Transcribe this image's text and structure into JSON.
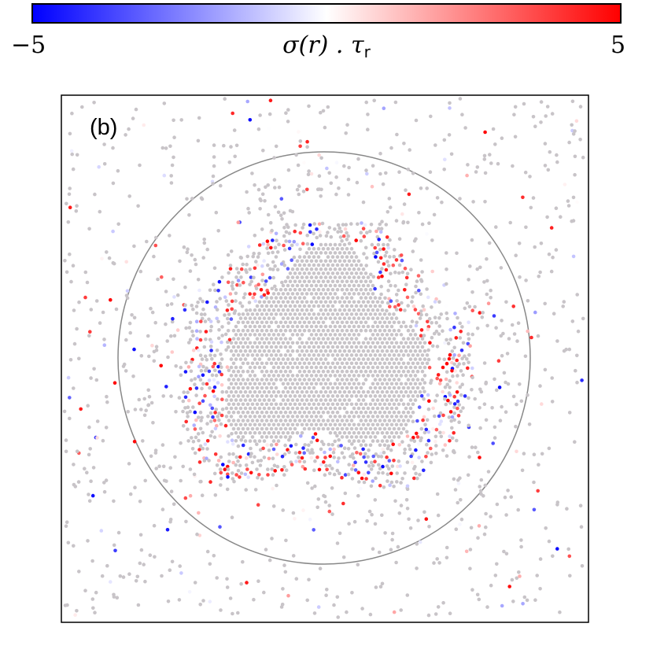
{
  "colorbar": {
    "min_label": "−5",
    "max_label": "5",
    "label_main": "σ(r) . τ",
    "label_sub": "r",
    "min": -5,
    "max": 5,
    "colors": {
      "low": "#0000ff",
      "mid": "#ffffff",
      "high": "#ff0000"
    }
  },
  "panel_label": "(b)",
  "chart_data": {
    "type": "scatter",
    "title": "",
    "xlabel": "",
    "ylabel": "",
    "color_variable": "σ(r) . τr",
    "color_range": [
      -5,
      5
    ],
    "neutral_color": "#c8c4c8",
    "circle_outline": true,
    "grid": false,
    "axis_ticks": false,
    "notes_visible": "Dense particle cluster in center, sparse particles outside; strongly colored red/blue particles concentrated at the cluster boundary.",
    "regions": [
      {
        "name": "dense-core",
        "density": "high",
        "typical_value": 0
      },
      {
        "name": "cluster-boundary",
        "density": "medium",
        "typical_value_range": [
          -5,
          5
        ]
      },
      {
        "name": "dilute-outside",
        "density": "low",
        "typical_value": 0
      }
    ]
  }
}
